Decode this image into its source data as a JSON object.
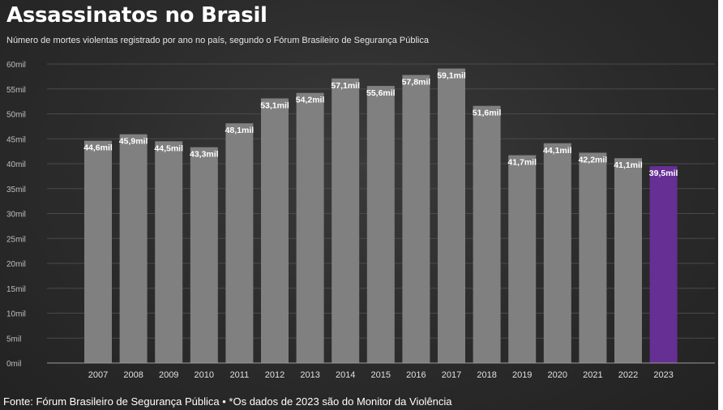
{
  "title": "Assassinatos no Brasil",
  "subtitle": "Número de mortes violentas registrado por ano no país, segundo o Fórum Brasileiro de Segurança Pública",
  "footer": "Fonte: Fórum Brasileiro de Segurança Pública • *Os dados de 2023 são do Monitor da Violência",
  "colors": {
    "bar": "#808080",
    "highlight_bar": "#652f94",
    "background": "#2b2b2b",
    "grid": "#4a4a4a",
    "text": "#ffffff"
  },
  "chart_data": {
    "type": "bar",
    "title": "Assassinatos no Brasil",
    "xlabel": "",
    "ylabel": "",
    "categories": [
      "2007",
      "2008",
      "2009",
      "2010",
      "2011",
      "2012",
      "2013",
      "2014",
      "2015",
      "2016",
      "2017",
      "2018",
      "2019",
      "2020",
      "2021",
      "2022",
      "2023"
    ],
    "values": [
      44.6,
      45.9,
      44.5,
      43.3,
      48.1,
      53.1,
      54.2,
      57.1,
      55.6,
      57.8,
      59.1,
      51.6,
      41.7,
      44.1,
      42.2,
      41.1,
      39.5
    ],
    "data_labels": [
      "44,6mil",
      "45,9mil",
      "44,5mil",
      "43,3mil",
      "48,1mil",
      "53,1mil",
      "54,2mil",
      "57,1mil",
      "55,6mil",
      "57,8mil",
      "59,1mil",
      "51,6mil",
      "41,7mil",
      "44,1mil",
      "42,2mil",
      "41,1mil",
      "39,5mil"
    ],
    "highlight_category": "2023",
    "ylim": [
      0,
      60
    ],
    "y_ticks": [
      0,
      5,
      10,
      15,
      20,
      25,
      30,
      35,
      40,
      45,
      50,
      55,
      60
    ],
    "y_tick_labels": [
      "0mil",
      "5mil",
      "10mil",
      "15mil",
      "20mil",
      "25mil",
      "30mil",
      "35mil",
      "40mil",
      "45mil",
      "50mil",
      "55mil",
      "60mil"
    ],
    "grid": true
  }
}
